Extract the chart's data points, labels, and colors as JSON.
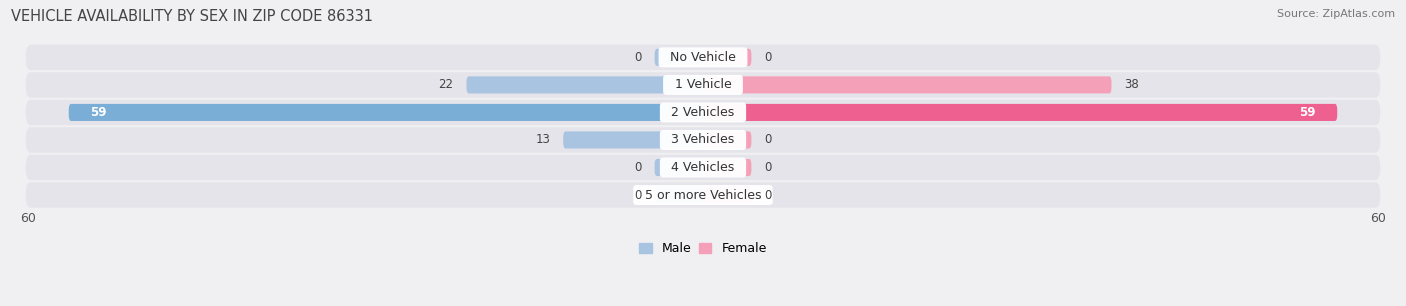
{
  "title": "VEHICLE AVAILABILITY BY SEX IN ZIP CODE 86331",
  "source": "Source: ZipAtlas.com",
  "categories": [
    "No Vehicle",
    "1 Vehicle",
    "2 Vehicles",
    "3 Vehicles",
    "4 Vehicles",
    "5 or more Vehicles"
  ],
  "male_values": [
    0,
    22,
    59,
    13,
    0,
    0
  ],
  "female_values": [
    0,
    38,
    59,
    0,
    0,
    0
  ],
  "male_color": "#a8c4e0",
  "male_color_dark": "#7aaed6",
  "female_color": "#f4a0b8",
  "female_color_dark": "#ee6090",
  "male_label": "Male",
  "female_label": "Female",
  "xlim": 60,
  "background_color": "#f0f0f2",
  "bar_bg_color": "#e4e4ea",
  "title_fontsize": 10.5,
  "source_fontsize": 8,
  "label_fontsize": 9,
  "value_fontsize": 8.5,
  "axis_label_fontsize": 9,
  "bar_height": 0.62,
  "stub_size": 4.5
}
